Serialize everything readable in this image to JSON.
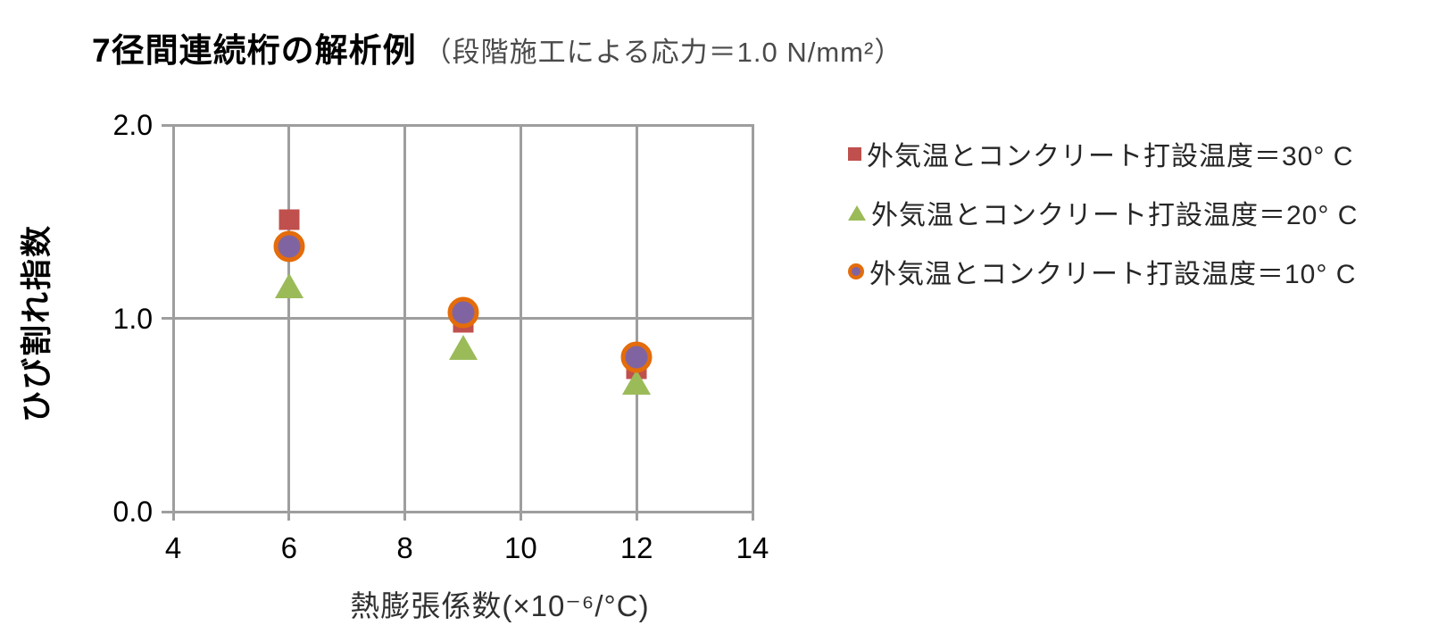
{
  "chart_data": {
    "type": "scatter",
    "title": "7径間連続桁の解析例",
    "subtitle": "（段階施工による応力＝1.0 N/mm²）",
    "xlabel": "熱膨張係数(×10⁻⁶/°C)",
    "ylabel": "ひび割れ指数",
    "xlim": [
      4,
      14
    ],
    "ylim": [
      0.0,
      2.0
    ],
    "x_ticks": [
      4,
      6,
      8,
      10,
      12,
      14
    ],
    "y_ticks": [
      0.0,
      1.0,
      2.0
    ],
    "grid": true,
    "legend_position": "right",
    "x": [
      6,
      9,
      12
    ],
    "series": [
      {
        "name": "外気温とコンクリート打設温度＝30° C",
        "marker": "square",
        "color": "#C0504D",
        "values": [
          1.51,
          0.98,
          0.74
        ]
      },
      {
        "name": "外気温とコンクリート打設温度＝20° C",
        "marker": "triangle",
        "color": "#9BBB59",
        "values": [
          1.17,
          0.85,
          0.67
        ]
      },
      {
        "name": "外気温とコンクリート打設温度＝10° C",
        "marker": "circle",
        "color": "#8064A2",
        "border_color": "#E46C0A",
        "values": [
          1.37,
          1.03,
          0.8
        ]
      }
    ]
  },
  "style": {
    "gridline_color": "#9e9e9e",
    "tick_label_color": "#000000",
    "subtitle_color": "#4a4a4a",
    "legend_text_color": "#262626"
  }
}
